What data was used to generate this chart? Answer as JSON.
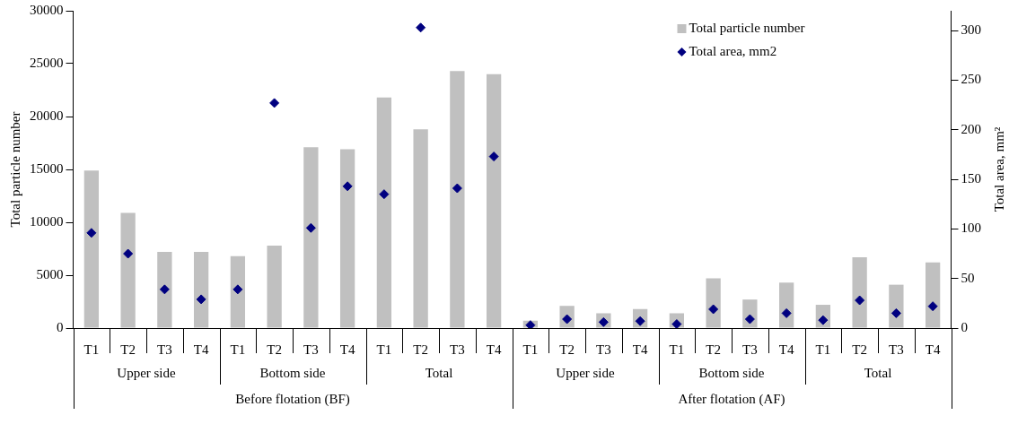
{
  "chart_data": {
    "type": "bar",
    "categories": [
      "T1",
      "T2",
      "T3",
      "T4",
      "T1",
      "T2",
      "T3",
      "T4",
      "T1",
      "T2",
      "T3",
      "T4",
      "T1",
      "T2",
      "T3",
      "T4",
      "T1",
      "T2",
      "T3",
      "T4",
      "T1",
      "T2",
      "T3",
      "T4"
    ],
    "series": [
      {
        "name": "Total particle number",
        "color": "#c0c0c0",
        "values": [
          14900,
          10900,
          7200,
          7200,
          6800,
          7800,
          17100,
          16900,
          21800,
          18800,
          24300,
          24000,
          700,
          2100,
          1400,
          1800,
          1400,
          4700,
          2700,
          4300,
          2200,
          6700,
          4100,
          6200
        ]
      },
      {
        "name": "Total area, mm2",
        "type": "scatter",
        "axis": "y2",
        "color": "#000080",
        "values": [
          96,
          75,
          39,
          29,
          39,
          227,
          101,
          143,
          135,
          303,
          141,
          173,
          3,
          9,
          6,
          7,
          4,
          19,
          9,
          15,
          8,
          28,
          15,
          22
        ]
      }
    ],
    "ylabel": "Total particle number",
    "y2label": "Total area, mm²",
    "ylim": [
      0,
      30000
    ],
    "yticks": [
      0,
      5000,
      10000,
      15000,
      20000,
      25000,
      30000
    ],
    "y2lim": [
      0,
      320
    ],
    "y2ticks": [
      0,
      50,
      100,
      150,
      200,
      250,
      300
    ],
    "grid": false,
    "legend": "top right",
    "marker": "diamond",
    "annotations": [
      "Upper side",
      "Bottom side",
      "Total",
      "Upper side",
      "Bottom side",
      "Total",
      "Before flotation (BF)",
      "After flotation (AF)"
    ]
  }
}
